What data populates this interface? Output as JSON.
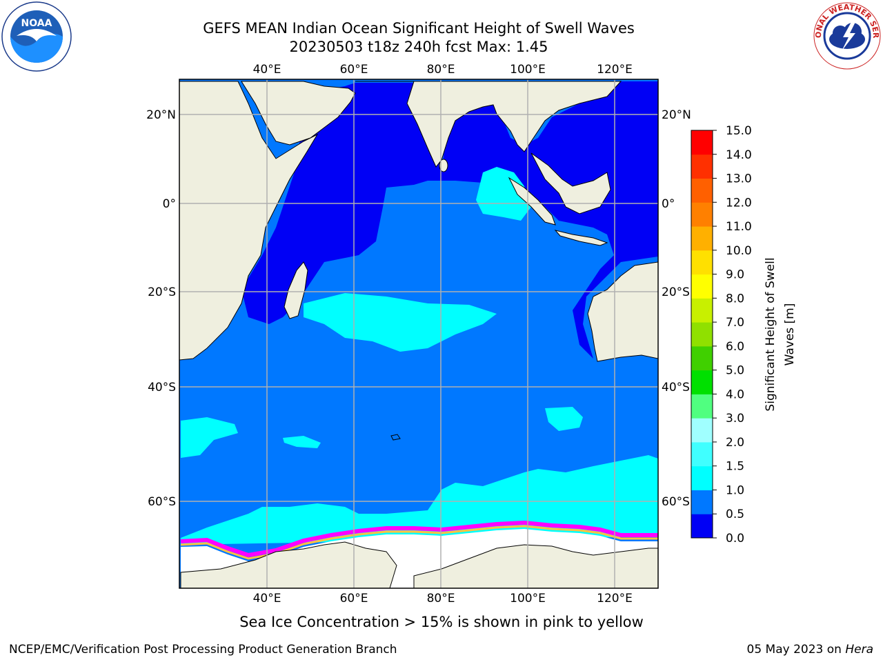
{
  "title": {
    "line1": "GEFS MEAN Indian Ocean Significant Height of Swell Waves",
    "line2": "20230503 t18z 240h fcst   Max: 1.45"
  },
  "map": {
    "lon_labels": [
      "40°E",
      "60°E",
      "80°E",
      "100°E",
      "120°E"
    ],
    "lat_labels": [
      "20°N",
      "0°",
      "20°S",
      "40°S",
      "60°S"
    ],
    "colors": {
      "land": "#efefdf",
      "ocean_0_05": "#0000f5",
      "ocean_05_10": "#0078ff",
      "ocean_10_15": "#00ffff",
      "ice_pink": "#ff66ff",
      "ice_magenta": "#ff00ff",
      "ice_orange": "#ffc040",
      "ice_white": "#ffffff",
      "grid": "#b0b0b0"
    }
  },
  "colorbar": {
    "label_line1": "Significant Height of Swell",
    "label_line2": "Waves [m]",
    "ticks": [
      "0.0",
      "0.5",
      "1.0",
      "1.5",
      "2.0",
      "3.0",
      "4.0",
      "5.0",
      "6.0",
      "7.0",
      "8.0",
      "9.0",
      "10.0",
      "11.0",
      "12.0",
      "13.0",
      "14.0",
      "15.0"
    ],
    "colors": [
      "#0000f5",
      "#0078ff",
      "#00ffff",
      "#40ffff",
      "#a0ffff",
      "#50ff80",
      "#00e000",
      "#40d000",
      "#90e000",
      "#c8f000",
      "#ffff00",
      "#ffe000",
      "#ffb000",
      "#ff8000",
      "#ff6000",
      "#ff3000",
      "#ff0000"
    ]
  },
  "footer": {
    "note": "Sea Ice Concentration > 15% is shown in pink to yellow",
    "left": "NCEP/EMC/Verification Post Processing Product Generation Branch",
    "right_date": "05 May 2023 on ",
    "right_host": "Hera"
  },
  "logos": {
    "noaa_text": "NOAA",
    "nws_text": "NATIONAL WEATHER SERVICE"
  }
}
